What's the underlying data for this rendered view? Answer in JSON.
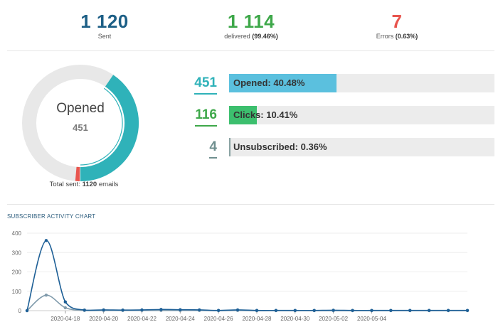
{
  "stats": {
    "sent": {
      "value": "1 120",
      "label": "Sent",
      "color": "#1d5f86"
    },
    "delivered": {
      "value": "1 114",
      "label": "delivered",
      "pct": "(99.46%)",
      "color": "#3ea84a"
    },
    "errors": {
      "value": "7",
      "label": "Errors",
      "pct": "(0.63%)",
      "color": "#e8554e"
    }
  },
  "donut": {
    "title": "Opened",
    "value": "451",
    "total_prefix": "Total sent:",
    "total_value": "1120",
    "total_suffix": "emails",
    "opened_fraction": 0.4048,
    "errors_fraction": 0.0063,
    "colors": {
      "opened": "#2fb2b9",
      "errors": "#e8554e",
      "track": "#e8e8e8"
    }
  },
  "bars": [
    {
      "count": "451",
      "label": "Opened:",
      "pct": "40.48%",
      "fraction": 0.4048,
      "color": "#5bc0de",
      "num_color": "#2fb2b9"
    },
    {
      "count": "116",
      "label": "Clicks:",
      "pct": "10.41%",
      "fraction": 0.1041,
      "color": "#3cbf6e",
      "num_color": "#3ea84a"
    },
    {
      "count": "4",
      "label": "Unsubscribed:",
      "pct": "0.36%",
      "fraction": 0.0036,
      "color": "#8aa3a3",
      "num_color": "#6f8f8f"
    }
  ],
  "chart_title": "SUBSCRIBER ACTIVITY CHART",
  "chart_data": {
    "type": "line",
    "x": [
      "2020-04-16",
      "2020-04-17",
      "2020-04-18",
      "2020-04-19",
      "2020-04-20",
      "2020-04-21",
      "2020-04-22",
      "2020-04-23",
      "2020-04-24",
      "2020-04-25",
      "2020-04-26",
      "2020-04-27",
      "2020-04-28",
      "2020-04-29",
      "2020-04-30",
      "2020-05-01",
      "2020-05-02",
      "2020-05-03",
      "2020-05-04",
      "2020-05-05",
      "2020-05-06",
      "2020-05-07",
      "2020-05-08",
      "2020-05-09"
    ],
    "x_ticks": [
      "2020-04-18",
      "2020-04-20",
      "2020-04-22",
      "2020-04-24",
      "2020-04-26",
      "2020-04-28",
      "2020-04-30",
      "2020-05-02",
      "2020-05-04"
    ],
    "y_ticks": [
      0,
      100,
      200,
      300,
      400
    ],
    "ylim": [
      0,
      400
    ],
    "series": [
      {
        "color": "#1d5f96",
        "values": [
          0,
          362,
          45,
          3,
          4,
          3,
          4,
          6,
          5,
          4,
          1,
          4,
          1,
          1,
          1,
          1,
          2,
          1,
          1,
          1,
          1,
          1,
          1,
          1
        ]
      },
      {
        "color": "#7f9aab",
        "values": [
          0,
          80,
          15,
          1,
          1,
          1,
          1,
          1,
          1,
          1,
          0,
          1,
          0,
          0,
          0,
          0,
          0,
          0,
          0,
          0,
          0,
          0,
          0,
          0
        ]
      }
    ]
  }
}
